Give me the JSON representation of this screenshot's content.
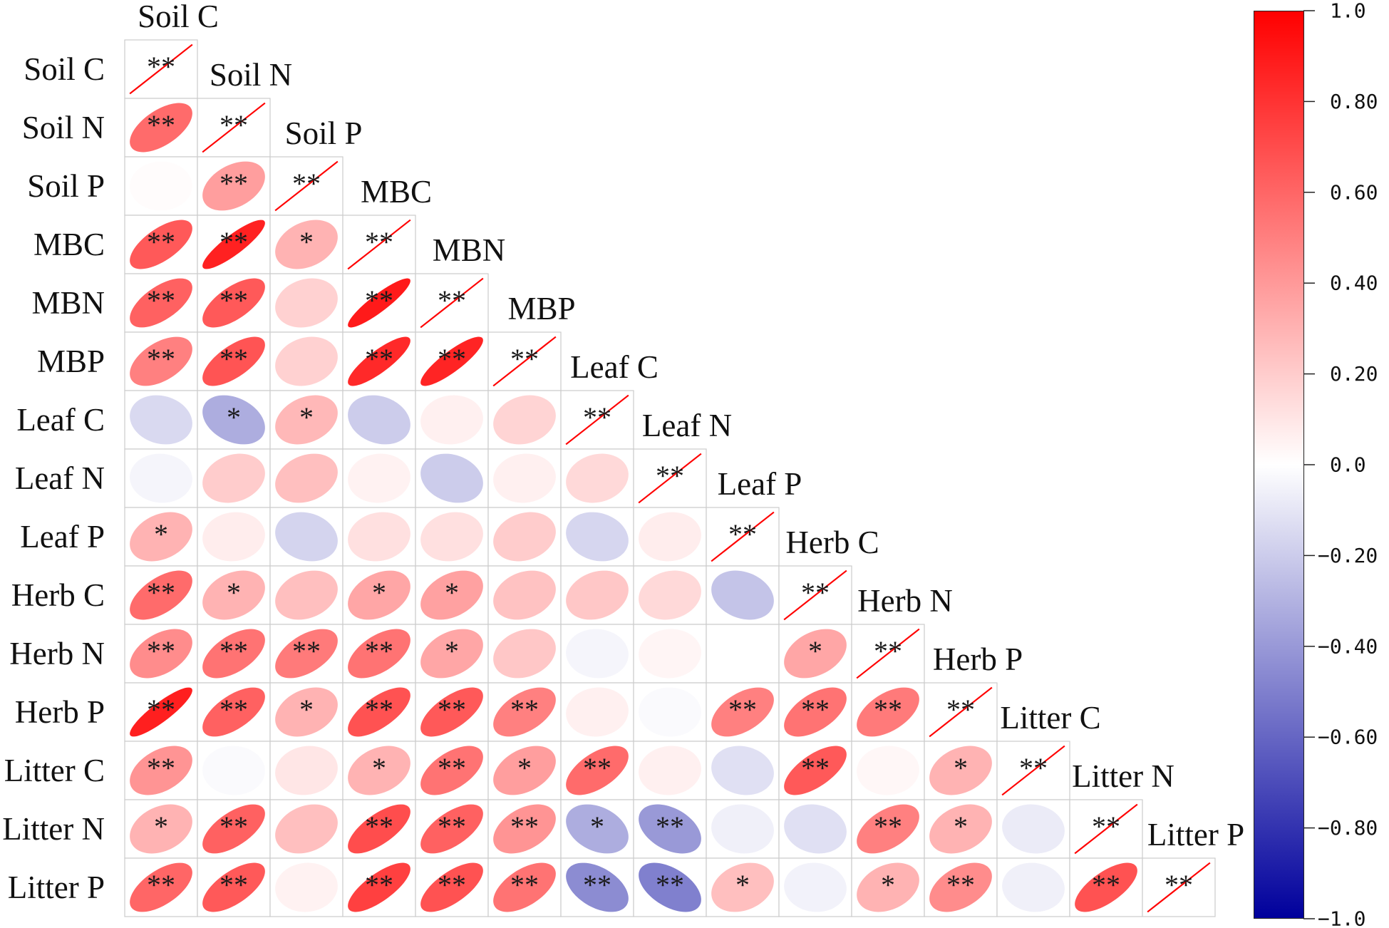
{
  "chart_data": {
    "type": "heatmap",
    "cell_shape": "ellipse",
    "triangle": "lower",
    "variables": [
      "Soil C",
      "Soil N",
      "Soil P",
      "MBC",
      "MBN",
      "MBP",
      "Leaf C",
      "Leaf N",
      "Leaf P",
      "Herb C",
      "Herb N",
      "Herb P",
      "Litter C",
      "Litter N",
      "Litter P"
    ],
    "values": [
      [
        1
      ],
      [
        0.58,
        1
      ],
      [
        0.01,
        0.38,
        1
      ],
      [
        0.65,
        0.87,
        0.3,
        1
      ],
      [
        0.62,
        0.65,
        0.18,
        0.9,
        1
      ],
      [
        0.5,
        0.67,
        0.18,
        0.84,
        0.86,
        1
      ],
      [
        -0.15,
        -0.32,
        0.28,
        -0.2,
        0.06,
        0.17,
        1
      ],
      [
        -0.04,
        0.2,
        0.25,
        0.05,
        -0.2,
        0.06,
        0.15,
        1
      ],
      [
        0.3,
        0.07,
        -0.17,
        0.12,
        0.12,
        0.2,
        -0.16,
        0.07,
        1
      ],
      [
        0.58,
        0.3,
        0.25,
        0.35,
        0.37,
        0.24,
        0.22,
        0.15,
        -0.23,
        1
      ],
      [
        0.45,
        0.55,
        0.52,
        0.55,
        0.35,
        0.22,
        -0.04,
        0.04,
        0.0,
        0.35,
        1
      ],
      [
        0.88,
        0.62,
        0.3,
        0.68,
        0.65,
        0.5,
        0.06,
        -0.02,
        0.5,
        0.55,
        0.52,
        1
      ],
      [
        0.42,
        -0.02,
        0.1,
        0.3,
        0.55,
        0.38,
        0.58,
        0.06,
        -0.12,
        0.65,
        0.03,
        0.3,
        1
      ],
      [
        0.3,
        0.62,
        0.25,
        0.7,
        0.62,
        0.42,
        -0.32,
        -0.4,
        -0.06,
        -0.12,
        0.5,
        0.3,
        -0.08,
        1
      ],
      [
        0.6,
        0.65,
        0.05,
        0.75,
        0.68,
        0.55,
        -0.45,
        -0.5,
        0.25,
        -0.05,
        0.3,
        0.45,
        -0.06,
        0.68,
        1
      ]
    ],
    "significance": [
      [
        "**"
      ],
      [
        "**",
        "**"
      ],
      [
        "",
        "**",
        "**"
      ],
      [
        "**",
        "**",
        "*",
        "**"
      ],
      [
        "**",
        "**",
        "",
        "**",
        "**"
      ],
      [
        "**",
        "**",
        "",
        "**",
        "**",
        "**"
      ],
      [
        "",
        "*",
        "*",
        "",
        "",
        "",
        "**"
      ],
      [
        "",
        "",
        "",
        "",
        "",
        "",
        "",
        "**"
      ],
      [
        "*",
        "",
        "",
        "",
        "",
        "",
        "",
        "",
        "**"
      ],
      [
        "**",
        "*",
        "",
        "*",
        "*",
        "",
        "",
        "",
        "",
        "**"
      ],
      [
        "**",
        "**",
        "**",
        "**",
        "*",
        "",
        "",
        "",
        "",
        "*",
        "**"
      ],
      [
        "**",
        "**",
        "*",
        "**",
        "**",
        "**",
        "",
        "",
        "**",
        "**",
        "**",
        "**"
      ],
      [
        "**",
        "",
        "",
        "*",
        "**",
        "*",
        "**",
        "",
        "",
        "**",
        "",
        "*",
        "**"
      ],
      [
        "*",
        "**",
        "",
        "**",
        "**",
        "**",
        "*",
        "**",
        "",
        "",
        "**",
        "*",
        "",
        "**"
      ],
      [
        "**",
        "**",
        "",
        "**",
        "**",
        "**",
        "**",
        "**",
        "*",
        "",
        "*",
        "**",
        "",
        "**",
        "**"
      ]
    ],
    "colorbar": {
      "position": "right",
      "range": [
        -1,
        1
      ],
      "ticks": [
        1.0,
        0.8,
        0.6,
        0.4,
        0.2,
        0.0,
        -0.2,
        -0.4,
        -0.6,
        -0.8,
        -1.0
      ],
      "tick_labels": [
        "1.0",
        "0.80",
        "0.60",
        "0.40",
        "0.20",
        "0.0",
        "−0.20",
        "−0.40",
        "−0.60",
        "−0.80",
        "−1.0"
      ],
      "colors": {
        "low": "#00009C",
        "mid": "#FFFFFF",
        "high": "#FF0000"
      }
    },
    "diagonal_color": "#FF0000",
    "grid_color": "#CCCCCC"
  }
}
